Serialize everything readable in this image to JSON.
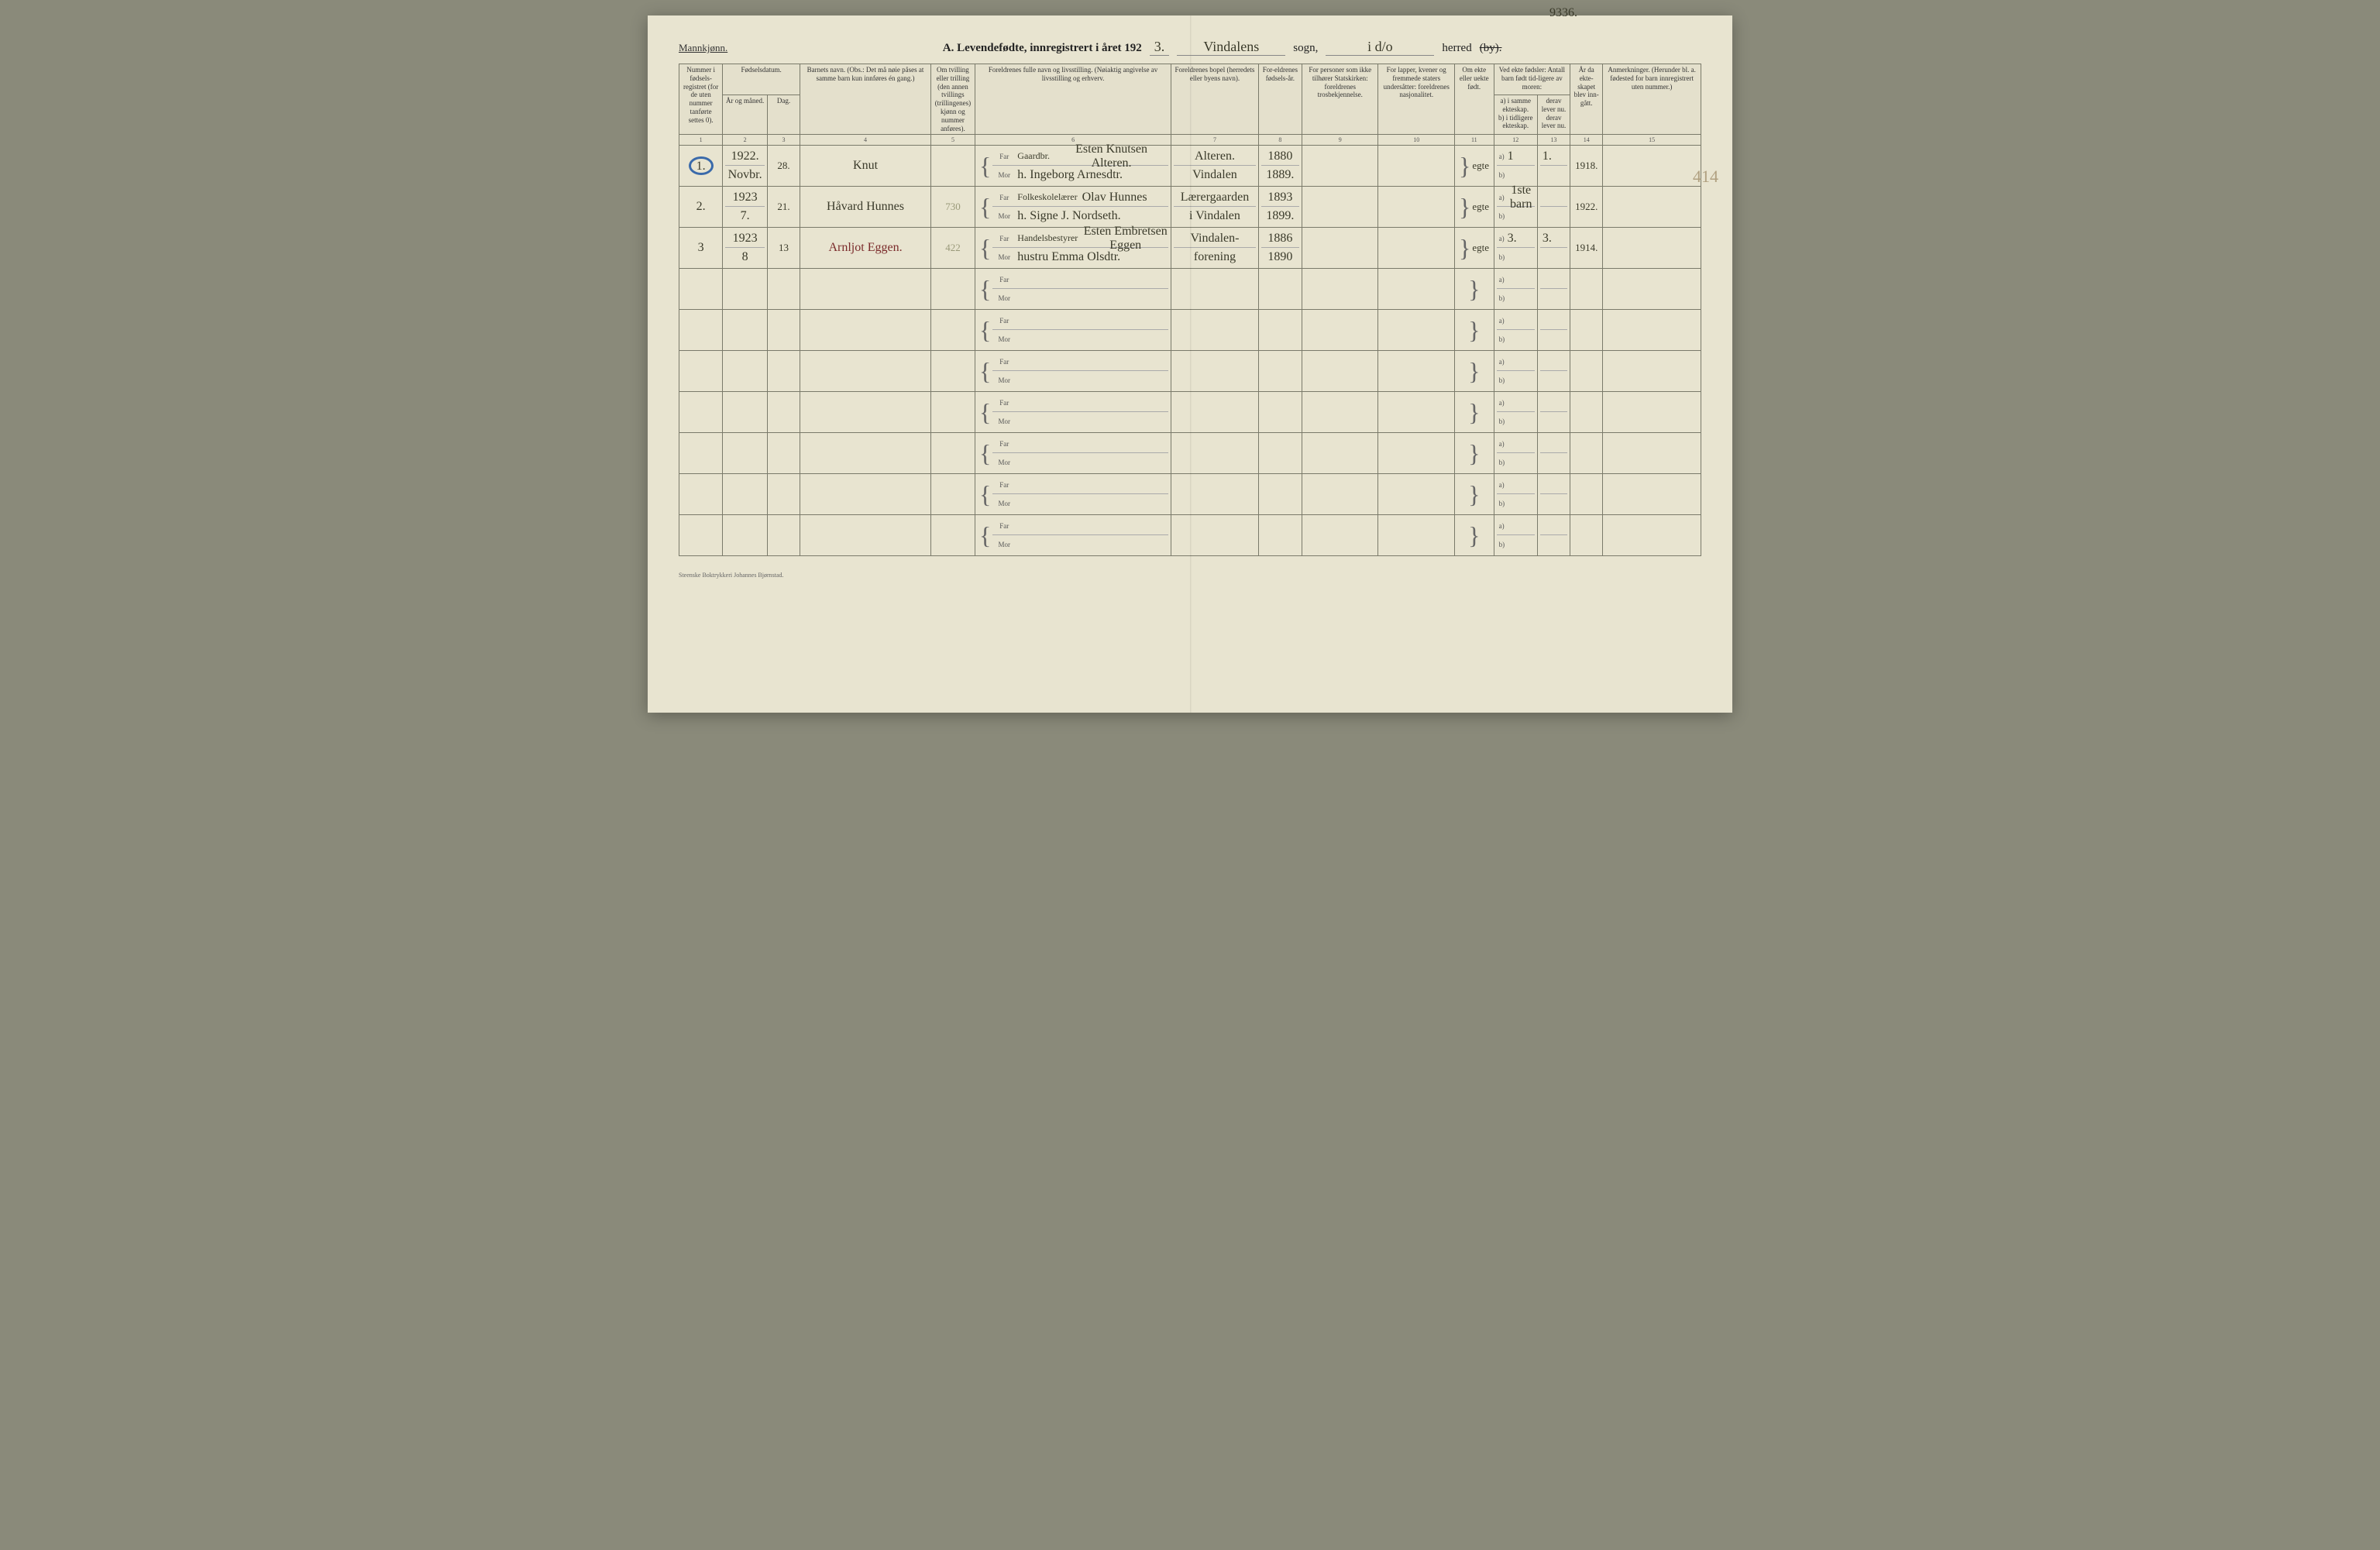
{
  "page": {
    "background_color": "#e8e4d0",
    "ink_color": "#333333",
    "handwriting_color": "#3a3a2a",
    "blue_circle_color": "#3a6aaa",
    "border_color": "#7a7a6a"
  },
  "header": {
    "gender_label": "Mannkjønn.",
    "title_prefix": "A.  Levendefødte, innregistrert i året 192",
    "year_suffix": "3.",
    "sogn_value": "Vindalens",
    "sogn_label": "sogn,",
    "herred_value": "i d/o",
    "herred_label": "herred",
    "herred_strike": "(by).",
    "archive_number": "9336."
  },
  "columns": {
    "c1": "Nummer i fødsels-registret (for de uten nummer tanførte settes 0).",
    "c2_group": "Fødselsdatum.",
    "c2a": "År og måned.",
    "c2b": "Dag.",
    "c4": "Barnets navn.\n(Obs.: Det må nøie påses at samme barn kun innføres én gang.)",
    "c5": "Om tvilling eller trilling (den annen tvillings (trillingenes) kjønn og nummer anføres).",
    "c6": "Foreldrenes fulle navn og livsstilling.\n(Nøiaktig angivelse av livsstilling og erhverv.",
    "c7": "Foreldrenes bopel (herredets eller byens navn).",
    "c8": "For-eldrenes fødsels-år.",
    "c9": "For personer som ikke tilhører Statskirken: foreldrenes trosbekjennelse.",
    "c10": "For lapper, kvener og fremmede staters undersåtter: foreldrenes nasjonalitet.",
    "c11": "Om ekte eller uekte født.",
    "c12_group": "Ved ekte fødsler: Antall barn født tid-ligere av moren:",
    "c12a": "a) i samme ekteskap.",
    "c12b": "b) i tidligere ekteskap.",
    "c13a": "derav lever nu.",
    "c13b": "derav lever nu.",
    "c14": "År da ekte-skapet blev inn-gått.",
    "c15": "Anmerkninger.\n(Herunder bl. a. fødested for barn innregistrert uten nummer.)"
  },
  "colnums": [
    "1",
    "2",
    "3",
    "4",
    "5",
    "6",
    "7",
    "8",
    "9",
    "10",
    "11",
    "12",
    "13",
    "14",
    "15"
  ],
  "parent_labels": {
    "far": "Far",
    "mor": "Mor",
    "a": "a)",
    "b": "b)"
  },
  "rows": [
    {
      "num": "1.",
      "num_circled": true,
      "year_month_top": "1922.",
      "year_month_bot": "Novbr.",
      "day": "28.",
      "child_name": "Knut",
      "col5": "",
      "father_occ": "Gaardbr.",
      "father": "Esten Knutsen Alteren.",
      "mother": "h. Ingeborg Arnesdtr.",
      "bopel_far": "Alteren.",
      "bopel_mor": "Vindalen",
      "faar": "1880",
      "maar": "1889.",
      "c9": "",
      "c10": "",
      "ekte": "egte",
      "a_val": "1",
      "a_lever": "1.",
      "year_marriage": "1918.",
      "remark": ""
    },
    {
      "num": "2.",
      "year_month_top": "1923",
      "year_month_bot": "7.",
      "day": "21.",
      "child_name": "Håvard Hunnes",
      "col5": "730",
      "father_occ": "Folkeskolelærer",
      "father": "Olav Hunnes",
      "mother": "h. Signe J. Nordseth.",
      "bopel_far": "Lærergaarden",
      "bopel_mor": "i Vindalen",
      "faar": "1893",
      "maar": "1899.",
      "c9": "",
      "c10": "",
      "ekte": "egte",
      "a_val": "1ste barn",
      "a_lever": "",
      "year_marriage": "1922.",
      "remark": ""
    },
    {
      "num": "3",
      "year_month_top": "1923",
      "year_month_bot": "8",
      "day": "13",
      "child_name": "Arnljot Eggen.",
      "child_name_red": true,
      "col5": "422",
      "father_occ": "Handelsbestyrer",
      "father": "Esten Embretsen Eggen",
      "mother": "hustru Emma Olsdtr.",
      "bopel_far": "Vindalen-",
      "bopel_mor": "forening",
      "faar": "1886",
      "maar": "1890",
      "c9": "",
      "c10": "",
      "ekte": "egte",
      "a_val": "3.",
      "a_lever": "3.",
      "year_marriage": "1914.",
      "remark": ""
    }
  ],
  "empty_rows": 7,
  "margin_note": "414",
  "footer": "Steenske Boktrykkeri Johannes Bjørnstad."
}
